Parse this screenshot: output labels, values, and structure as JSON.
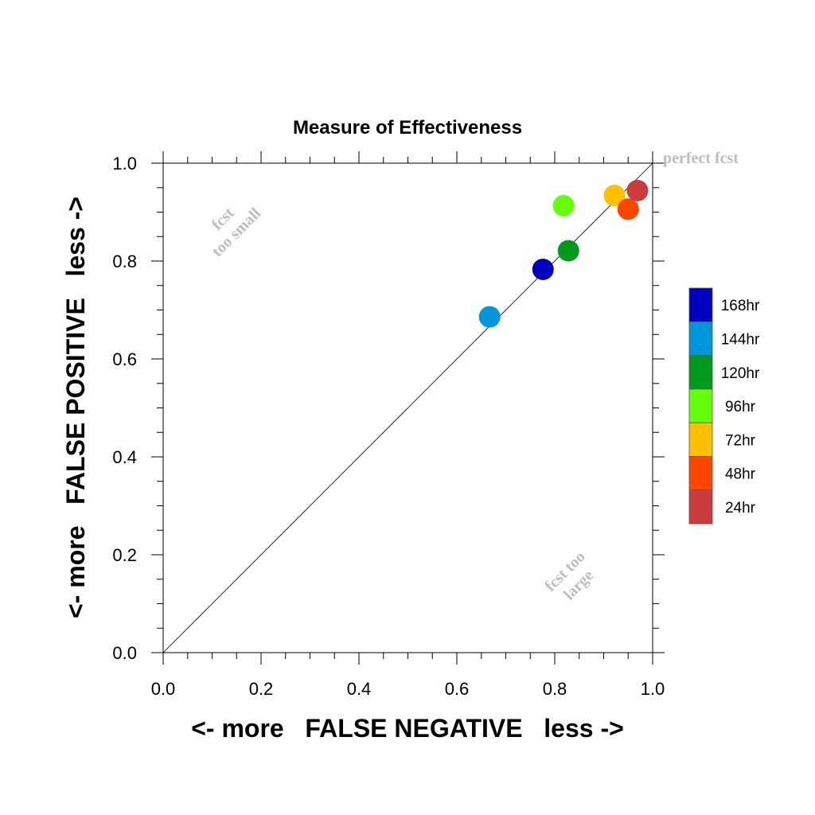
{
  "chart_data": {
    "type": "scatter",
    "title": "Measure of Effectiveness",
    "xlabel": "<- more   FALSE NEGATIVE   less ->",
    "ylabel": "<- more   FALSE POSITIVE   less ->",
    "xlim": [
      0,
      1
    ],
    "ylim": [
      0,
      1
    ],
    "x_ticks": [
      "0.0",
      "0.2",
      "0.4",
      "0.6",
      "0.8",
      "1.0"
    ],
    "y_ticks": [
      "0.0",
      "0.2",
      "0.4",
      "0.6",
      "0.8",
      "1.0"
    ],
    "grid": false,
    "diagonal_line": true,
    "legend_position": "right",
    "annotations": {
      "perfect": "perfect fcst",
      "too_small_1": "fcst",
      "too_small_2": "too small",
      "too_large_1": "fcst too",
      "too_large_2": "large"
    },
    "series": [
      {
        "name": "168hr",
        "color": "#0000c0",
        "x": 0.776,
        "y": 0.783
      },
      {
        "name": "144hr",
        "color": "#0096dc",
        "x": 0.667,
        "y": 0.686
      },
      {
        "name": "120hr",
        "color": "#009a1e",
        "x": 0.828,
        "y": 0.821
      },
      {
        "name": "96hr",
        "color": "#64ff0a",
        "x": 0.818,
        "y": 0.913
      },
      {
        "name": "72hr",
        "color": "#ffc000",
        "x": 0.922,
        "y": 0.934
      },
      {
        "name": "48hr",
        "color": "#ff4500",
        "x": 0.95,
        "y": 0.906
      },
      {
        "name": "24hr",
        "color": "#cd3c3c",
        "x": 0.969,
        "y": 0.944
      }
    ]
  }
}
